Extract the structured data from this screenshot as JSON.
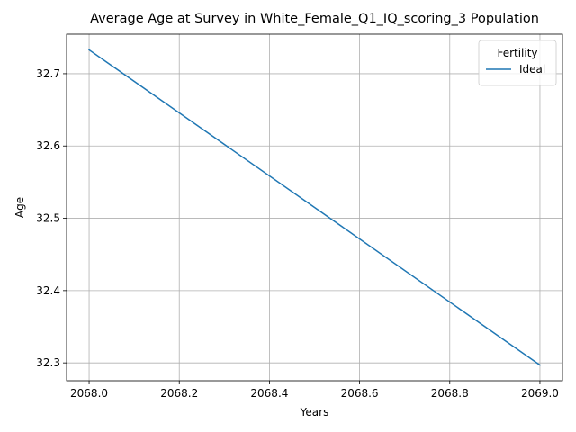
{
  "chart_data": {
    "type": "line",
    "title": "Average Age at Survey in White_Female_Q1_IQ_scoring_3 Population",
    "xlabel": "Years",
    "ylabel": "Age",
    "xlim": [
      2067.95,
      2069.05
    ],
    "ylim": [
      32.2753,
      32.7547
    ],
    "x_ticks": [
      2068.0,
      2068.2,
      2068.4,
      2068.6,
      2068.8,
      2069.0
    ],
    "x_tick_labels": [
      "2068.0",
      "2068.2",
      "2068.4",
      "2068.6",
      "2068.8",
      "2069.0"
    ],
    "y_ticks": [
      32.3,
      32.4,
      32.5,
      32.6,
      32.7
    ],
    "y_tick_labels": [
      "32.3",
      "32.4",
      "32.5",
      "32.6",
      "32.7"
    ],
    "grid": true,
    "legend": {
      "title": "Fertility",
      "placement": "top-right"
    },
    "series": [
      {
        "name": "Ideal",
        "color": "#1f77b4",
        "x": [
          2068.0,
          2069.0
        ],
        "y": [
          32.733,
          32.297
        ]
      }
    ]
  }
}
